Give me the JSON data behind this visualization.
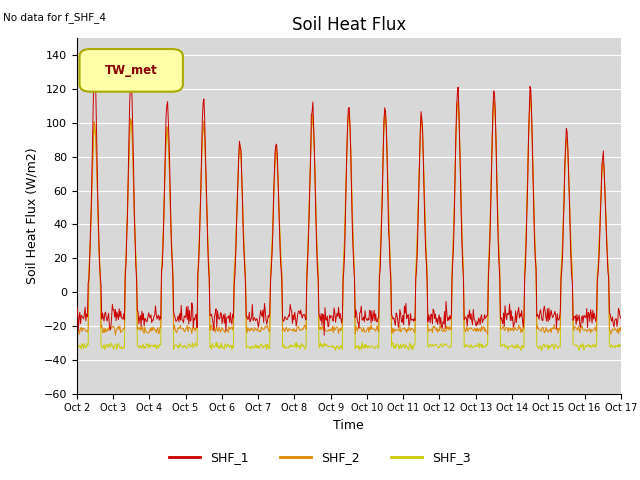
{
  "title": "Soil Heat Flux",
  "ylabel": "Soil Heat Flux (W/m2)",
  "xlabel": "Time",
  "note": "No data for f_SHF_4",
  "legend_label": "TW_met",
  "ylim": [
    -60,
    150
  ],
  "yticks": [
    -60,
    -40,
    -20,
    0,
    20,
    40,
    60,
    80,
    100,
    120,
    140
  ],
  "n_days": 15,
  "series_colors": {
    "SHF_1": "#cc0000",
    "SHF_2": "#dd8800",
    "SHF_3": "#cccc00"
  },
  "bg_color": "#d8d8d8",
  "legend_items": [
    {
      "label": "SHF_1",
      "color": "#cc0000"
    },
    {
      "label": "SHF_2",
      "color": "#dd8800"
    },
    {
      "label": "SHF_3",
      "color": "#cccc00"
    }
  ],
  "tick_labels": [
    "Oct 2",
    "Oct 3",
    "Oct 4",
    "Oct 5",
    "Oct 6",
    "Oct 7",
    "Oct 8",
    "Oct 9",
    "Oct 10",
    "Oct 11",
    "Oct 12",
    "Oct 13",
    "Oct 14",
    "Oct 15",
    "Oct 16",
    "Oct 17"
  ],
  "samples_per_day": 48,
  "title_fontsize": 12,
  "axis_fontsize": 9,
  "tick_fontsize": 8
}
